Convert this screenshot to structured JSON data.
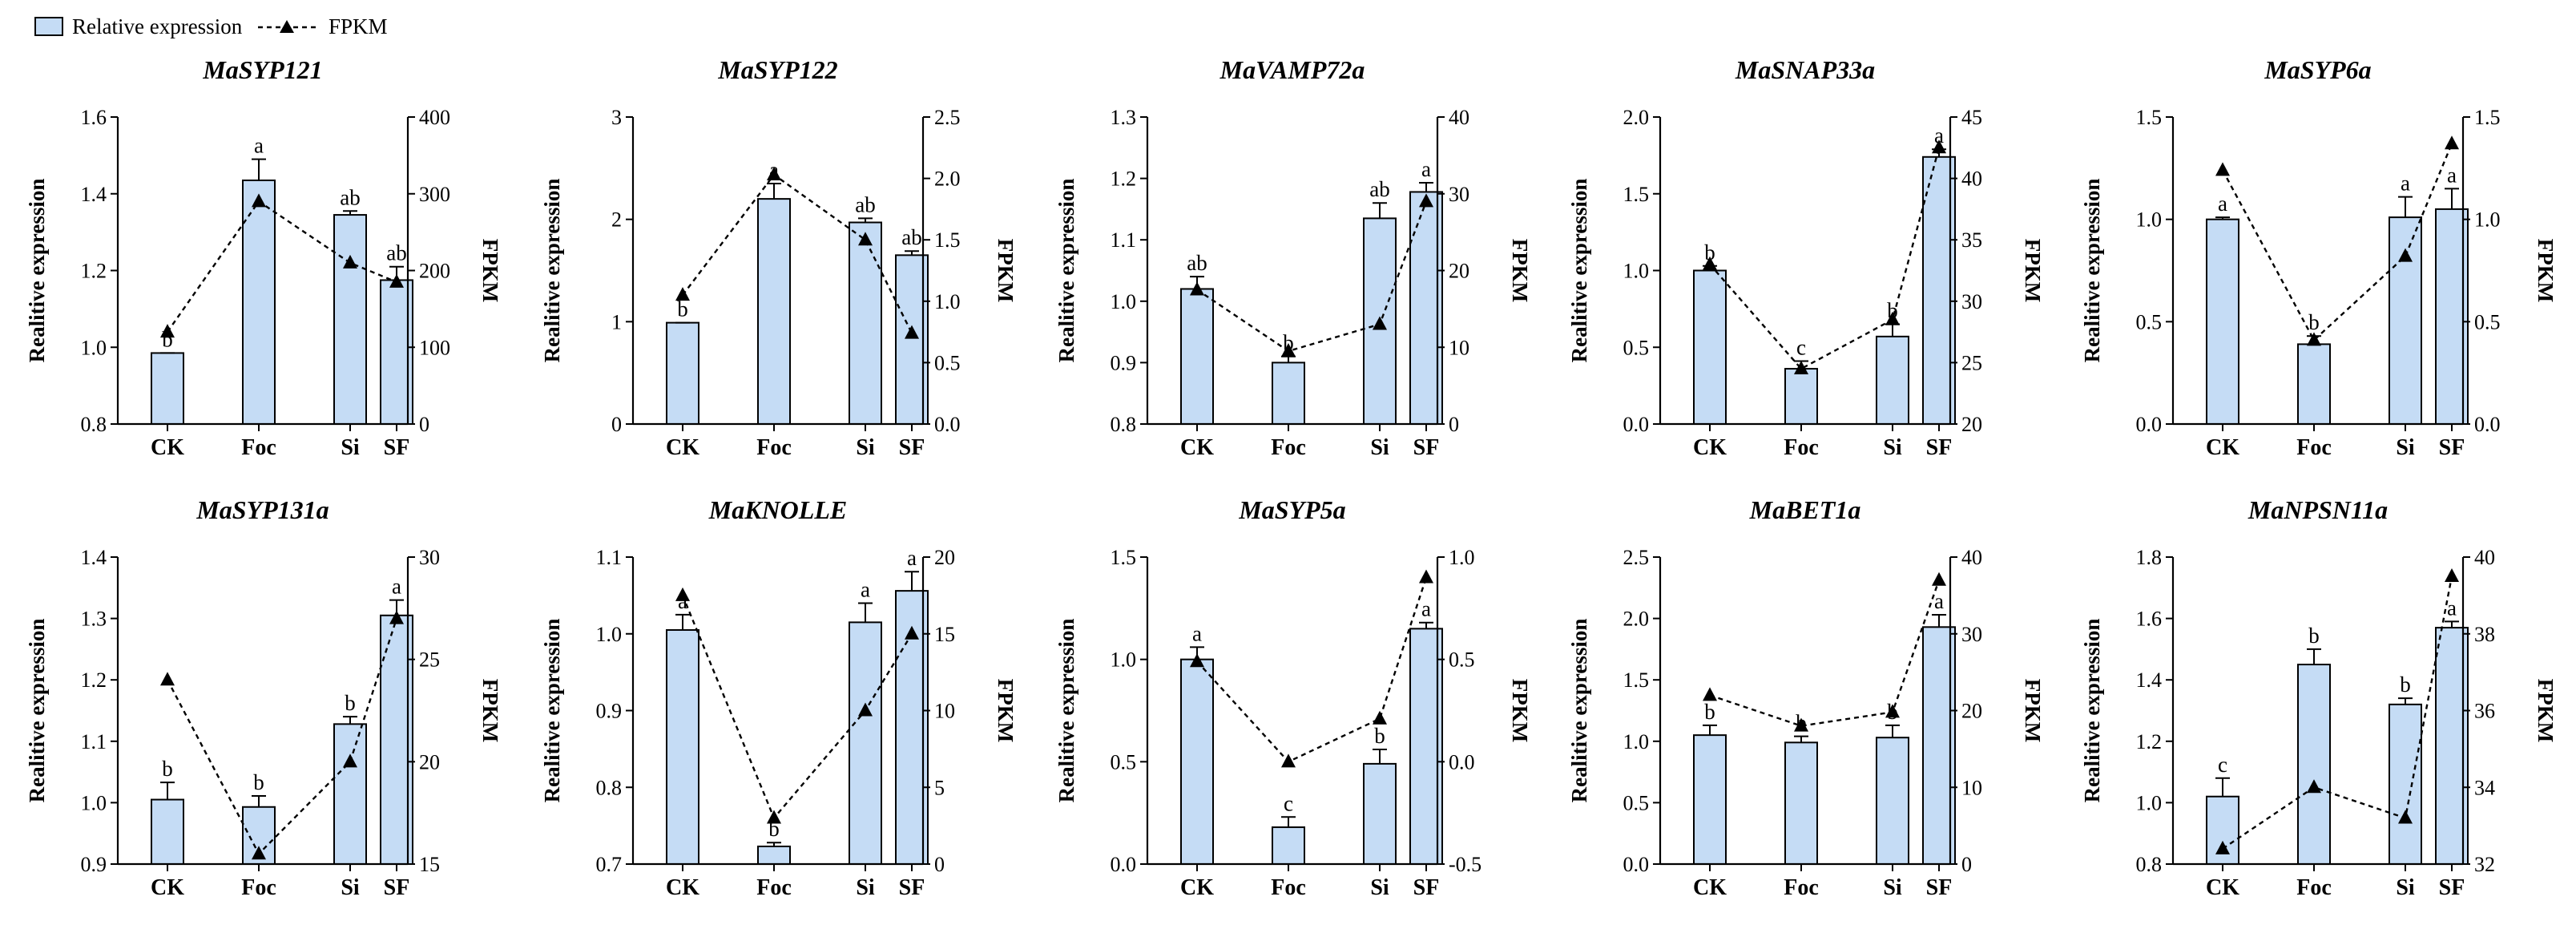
{
  "legend": {
    "bar_label": "Relative expression",
    "line_label": "FPKM"
  },
  "colors": {
    "bar_fill": "#c5dcf5",
    "stroke": "#000000"
  },
  "chart_data": [
    {
      "type": "bar+line",
      "title": "MaSYP121",
      "categories": [
        "CK",
        "Foc",
        "Si",
        "SF"
      ],
      "ylabel": "Realitive expression",
      "y2label": "FPKM",
      "ylim": [
        0.8,
        1.6
      ],
      "yticks": [
        "0.8",
        "1.0",
        "1.2",
        "1.4",
        "1.6"
      ],
      "y2lim": [
        0,
        400
      ],
      "y2ticks": [
        "0",
        "100",
        "200",
        "300",
        "400"
      ],
      "bar_values": [
        0.985,
        1.435,
        1.345,
        1.175
      ],
      "bar_errors": [
        0,
        0.055,
        0.01,
        0.035
      ],
      "bar_letters": [
        "b",
        "a",
        "ab",
        "ab"
      ],
      "line_values": [
        120,
        290,
        210,
        185
      ]
    },
    {
      "type": "bar+line",
      "title": "MaSYP122",
      "categories": [
        "CK",
        "Foc",
        "Si",
        "SF"
      ],
      "ylabel": "Realitive expression",
      "y2label": "FPKM",
      "ylim": [
        0,
        3
      ],
      "yticks": [
        "0",
        "1",
        "2",
        "3"
      ],
      "y2lim": [
        0,
        2.5
      ],
      "y2ticks": [
        "0.0",
        "0.5",
        "1.0",
        "1.5",
        "2.0",
        "2.5"
      ],
      "bar_values": [
        0.99,
        2.2,
        1.97,
        1.65
      ],
      "bar_errors": [
        0,
        0.15,
        0.04,
        0.04
      ],
      "bar_letters": [
        "b",
        "a",
        "ab",
        "ab"
      ],
      "line_values": [
        1.05,
        2.03,
        1.5,
        0.74
      ]
    },
    {
      "type": "bar+line",
      "title": "MaVAMP72a",
      "categories": [
        "CK",
        "Foc",
        "Si",
        "SF"
      ],
      "ylabel": "Realitive expression",
      "y2label": "FPKM",
      "ylim": [
        0.8,
        1.3
      ],
      "yticks": [
        "0.8",
        "0.9",
        "1.0",
        "1.1",
        "1.2",
        "1.3"
      ],
      "y2lim": [
        0,
        40
      ],
      "y2ticks": [
        "0",
        "10",
        "20",
        "30",
        "40"
      ],
      "bar_values": [
        1.02,
        0.9,
        1.135,
        1.178
      ],
      "bar_errors": [
        0.02,
        0.01,
        0.025,
        0.015
      ],
      "bar_letters": [
        "ab",
        "b",
        "ab",
        "a"
      ],
      "line_values": [
        17.5,
        9.5,
        13,
        29
      ]
    },
    {
      "type": "bar+line",
      "title": "MaSNAP33a",
      "categories": [
        "CK",
        "Foc",
        "Si",
        "SF"
      ],
      "ylabel": "Realitive expression",
      "y2label": "FPKM",
      "ylim": [
        0,
        2
      ],
      "yticks": [
        "0.0",
        "0.5",
        "1.0",
        "1.5",
        "2.0"
      ],
      "y2lim": [
        20,
        45
      ],
      "y2ticks": [
        "20",
        "25",
        "30",
        "35",
        "40",
        "45"
      ],
      "bar_values": [
        1.0,
        0.36,
        0.57,
        1.74
      ],
      "bar_errors": [
        0.03,
        0.05,
        0.08,
        0.05
      ],
      "bar_letters": [
        "b",
        "c",
        "b",
        "a"
      ],
      "line_values": [
        33,
        24.5,
        28.5,
        42.5
      ]
    },
    {
      "type": "bar+line",
      "title": "MaSYP6a",
      "categories": [
        "CK",
        "Foc",
        "Si",
        "SF"
      ],
      "ylabel": "Realitive expression",
      "y2label": "FPKM",
      "ylim": [
        0,
        1.5
      ],
      "yticks": [
        "0.0",
        "0.5",
        "1.0",
        "1.5"
      ],
      "y2lim": [
        0,
        1.5
      ],
      "y2ticks": [
        "0.0",
        "0.5",
        "1.0",
        "1.5"
      ],
      "bar_values": [
        1.0,
        0.39,
        1.01,
        1.05
      ],
      "bar_errors": [
        0.01,
        0.04,
        0.1,
        0.1
      ],
      "bar_letters": [
        "a",
        "b",
        "a",
        "a"
      ],
      "line_values": [
        1.24,
        0.41,
        0.82,
        1.37
      ]
    },
    {
      "type": "bar+line",
      "title": "MaSYP131a",
      "categories": [
        "CK",
        "Foc",
        "Si",
        "SF"
      ],
      "ylabel": "Realitive expression",
      "y2label": "FPKM",
      "ylim": [
        0.9,
        1.4
      ],
      "yticks": [
        "0.9",
        "1.0",
        "1.1",
        "1.2",
        "1.3",
        "1.4"
      ],
      "y2lim": [
        15,
        30
      ],
      "y2ticks": [
        "15",
        "20",
        "25",
        "30"
      ],
      "bar_values": [
        1.005,
        0.993,
        1.128,
        1.305
      ],
      "bar_errors": [
        0.028,
        0.018,
        0.012,
        0.025
      ],
      "bar_letters": [
        "b",
        "b",
        "b",
        "a"
      ],
      "line_values": [
        24,
        15.5,
        20,
        27
      ]
    },
    {
      "type": "bar+line",
      "title": "MaKNOLLE",
      "categories": [
        "CK",
        "Foc",
        "Si",
        "SF"
      ],
      "ylabel": "Realitive expression",
      "y2label": "FPKM",
      "ylim": [
        0.7,
        1.1
      ],
      "yticks": [
        "0.7",
        "0.8",
        "0.9",
        "1.0",
        "1.1"
      ],
      "y2lim": [
        0,
        20
      ],
      "y2ticks": [
        "0",
        "5",
        "10",
        "15",
        "20"
      ],
      "bar_values": [
        1.005,
        0.723,
        1.015,
        1.056
      ],
      "bar_errors": [
        0.02,
        0.005,
        0.025,
        0.025
      ],
      "bar_letters": [
        "a",
        "b",
        "a",
        "a"
      ],
      "line_values": [
        17.5,
        3,
        10,
        15
      ]
    },
    {
      "type": "bar+line",
      "title": "MaSYP5a",
      "categories": [
        "CK",
        "Foc",
        "Si",
        "SF"
      ],
      "ylabel": "Realitive expression",
      "y2label": "FPKM",
      "ylim": [
        0,
        1.5
      ],
      "yticks": [
        "0.0",
        "0.5",
        "1.0",
        "1.5"
      ],
      "y2lim": [
        -0.5,
        1.0
      ],
      "y2ticks": [
        "-0.5",
        "0.0",
        "0.5",
        "1.0"
      ],
      "bar_values": [
        1.0,
        0.18,
        0.49,
        1.15
      ],
      "bar_errors": [
        0.06,
        0.05,
        0.07,
        0.03
      ],
      "bar_letters": [
        "a",
        "c",
        "b",
        "a"
      ],
      "line_values": [
        0.49,
        0.0,
        0.21,
        0.9
      ]
    },
    {
      "type": "bar+line",
      "title": "MaBET1a",
      "categories": [
        "CK",
        "Foc",
        "Si",
        "SF"
      ],
      "ylabel": "Realitive expression",
      "y2label": "FPKM",
      "ylim": [
        0,
        2.5
      ],
      "yticks": [
        "0.0",
        "0.5",
        "1.0",
        "1.5",
        "2.0",
        "2.5"
      ],
      "y2lim": [
        0,
        40
      ],
      "y2ticks": [
        "0",
        "10",
        "20",
        "30",
        "40"
      ],
      "bar_values": [
        1.05,
        0.99,
        1.03,
        1.93
      ],
      "bar_errors": [
        0.08,
        0.05,
        0.1,
        0.1
      ],
      "bar_letters": [
        "b",
        "b",
        "b",
        "a"
      ],
      "line_values": [
        22,
        18,
        19.8,
        37
      ]
    },
    {
      "type": "bar+line",
      "title": "MaNPSN11a",
      "categories": [
        "CK",
        "Foc",
        "Si",
        "SF"
      ],
      "ylabel": "Realitive expression",
      "y2label": "FPKM",
      "ylim": [
        0.8,
        1.8
      ],
      "yticks": [
        "0.8",
        "1.0",
        "1.2",
        "1.4",
        "1.6",
        "1.8"
      ],
      "y2lim": [
        32,
        40
      ],
      "y2ticks": [
        "32",
        "34",
        "36",
        "38",
        "40"
      ],
      "bar_values": [
        1.02,
        1.45,
        1.32,
        1.57
      ],
      "bar_errors": [
        0.06,
        0.05,
        0.02,
        0.02
      ],
      "bar_letters": [
        "c",
        "b",
        "b",
        "a"
      ],
      "line_values": [
        32.4,
        34,
        33.2,
        39.5
      ]
    }
  ]
}
